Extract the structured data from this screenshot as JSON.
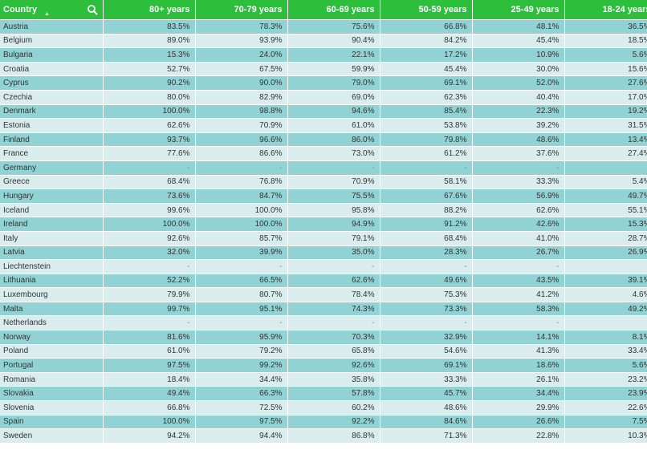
{
  "header": {
    "country": "Country",
    "columns": [
      "80+ years",
      "70-79 years",
      "60-69 years",
      "50-59 years",
      "25-49 years",
      "18-24 years"
    ]
  },
  "rows": [
    {
      "country": "Austria",
      "values": [
        "83.5%",
        "78.3%",
        "75.6%",
        "66.8%",
        "48.1%",
        "36.5%"
      ]
    },
    {
      "country": "Belgium",
      "values": [
        "89.0%",
        "93.9%",
        "90.4%",
        "84.2%",
        "45.4%",
        "18.5%"
      ]
    },
    {
      "country": "Bulgaria",
      "values": [
        "15.3%",
        "24.0%",
        "22.1%",
        "17.2%",
        "10.9%",
        "5.6%"
      ]
    },
    {
      "country": "Croatia",
      "values": [
        "52.7%",
        "67.5%",
        "59.9%",
        "45.4%",
        "30.0%",
        "15.6%"
      ]
    },
    {
      "country": "Cyprus",
      "values": [
        "90.2%",
        "90.0%",
        "79.0%",
        "69.1%",
        "52.0%",
        "27.6%"
      ]
    },
    {
      "country": "Czechia",
      "values": [
        "80.0%",
        "82.9%",
        "69.0%",
        "62.3%",
        "40.4%",
        "17.0%"
      ]
    },
    {
      "country": "Denmark",
      "values": [
        "100.0%",
        "98.8%",
        "94.6%",
        "85.4%",
        "22.3%",
        "19.2%"
      ]
    },
    {
      "country": "Estonia",
      "values": [
        "62.6%",
        "70.9%",
        "61.0%",
        "53.8%",
        "39.2%",
        "31.5%"
      ]
    },
    {
      "country": "Finland",
      "values": [
        "93.7%",
        "96.6%",
        "86.0%",
        "79.8%",
        "48.6%",
        "13.4%"
      ]
    },
    {
      "country": "France",
      "values": [
        "77.6%",
        "86.6%",
        "73.0%",
        "61.2%",
        "37.6%",
        "27.4%"
      ]
    },
    {
      "country": "Germany",
      "values": [
        "-",
        "-",
        "-",
        "-",
        "-",
        "-"
      ]
    },
    {
      "country": "Greece",
      "values": [
        "68.4%",
        "76.8%",
        "70.9%",
        "58.1%",
        "33.3%",
        "5.4%"
      ]
    },
    {
      "country": "Hungary",
      "values": [
        "73.6%",
        "84.7%",
        "75.5%",
        "67.6%",
        "56.9%",
        "49.7%"
      ]
    },
    {
      "country": "Iceland",
      "values": [
        "99.6%",
        "100.0%",
        "95.8%",
        "88.2%",
        "62.6%",
        "55.1%"
      ]
    },
    {
      "country": "Ireland",
      "values": [
        "100.0%",
        "100.0%",
        "94.9%",
        "91.2%",
        "42.6%",
        "15.3%"
      ]
    },
    {
      "country": "Italy",
      "values": [
        "92.6%",
        "85.7%",
        "79.1%",
        "68.4%",
        "41.0%",
        "28.7%"
      ]
    },
    {
      "country": "Latvia",
      "values": [
        "32.0%",
        "39.9%",
        "35.0%",
        "28.3%",
        "26.7%",
        "26.9%"
      ]
    },
    {
      "country": "Liechtenstein",
      "values": [
        "-",
        "-",
        "-",
        "-",
        "-",
        "-"
      ]
    },
    {
      "country": "Lithuania",
      "values": [
        "52.2%",
        "66.5%",
        "62.6%",
        "49.6%",
        "43.5%",
        "39.1%"
      ]
    },
    {
      "country": "Luxembourg",
      "values": [
        "79.9%",
        "80.7%",
        "78.4%",
        "75.3%",
        "41.2%",
        "4.6%"
      ]
    },
    {
      "country": "Malta",
      "values": [
        "99.7%",
        "95.1%",
        "74.3%",
        "73.3%",
        "58.3%",
        "49.2%"
      ]
    },
    {
      "country": "Netherlands",
      "values": [
        "-",
        "-",
        "-",
        "-",
        "-",
        "-"
      ]
    },
    {
      "country": "Norway",
      "values": [
        "81.6%",
        "95.9%",
        "70.3%",
        "32.9%",
        "14.1%",
        "8.1%"
      ]
    },
    {
      "country": "Poland",
      "values": [
        "61.0%",
        "79.2%",
        "65.8%",
        "54.6%",
        "41.3%",
        "33.4%"
      ]
    },
    {
      "country": "Portugal",
      "values": [
        "97.5%",
        "99.2%",
        "92.6%",
        "69.1%",
        "18.6%",
        "5.6%"
      ]
    },
    {
      "country": "Romania",
      "values": [
        "18.4%",
        "34.4%",
        "35.8%",
        "33.3%",
        "26.1%",
        "23.2%"
      ]
    },
    {
      "country": "Slovakia",
      "values": [
        "49.4%",
        "66.3%",
        "57.8%",
        "45.7%",
        "34.4%",
        "23.9%"
      ]
    },
    {
      "country": "Slovenia",
      "values": [
        "66.8%",
        "72.5%",
        "60.2%",
        "48.6%",
        "29.9%",
        "22.6%"
      ]
    },
    {
      "country": "Spain",
      "values": [
        "100.0%",
        "97.5%",
        "92.2%",
        "84.6%",
        "26.6%",
        "7.5%"
      ]
    },
    {
      "country": "Sweden",
      "values": [
        "94.2%",
        "94.4%",
        "86.8%",
        "71.3%",
        "22.8%",
        "10.3%"
      ]
    }
  ],
  "icons": {
    "search": "search-icon",
    "sort": "sort-arrow-icon"
  },
  "colors": {
    "header_bg": "#2dbe3c",
    "row_odd": "#91d2d4",
    "row_even": "#d9edee"
  }
}
